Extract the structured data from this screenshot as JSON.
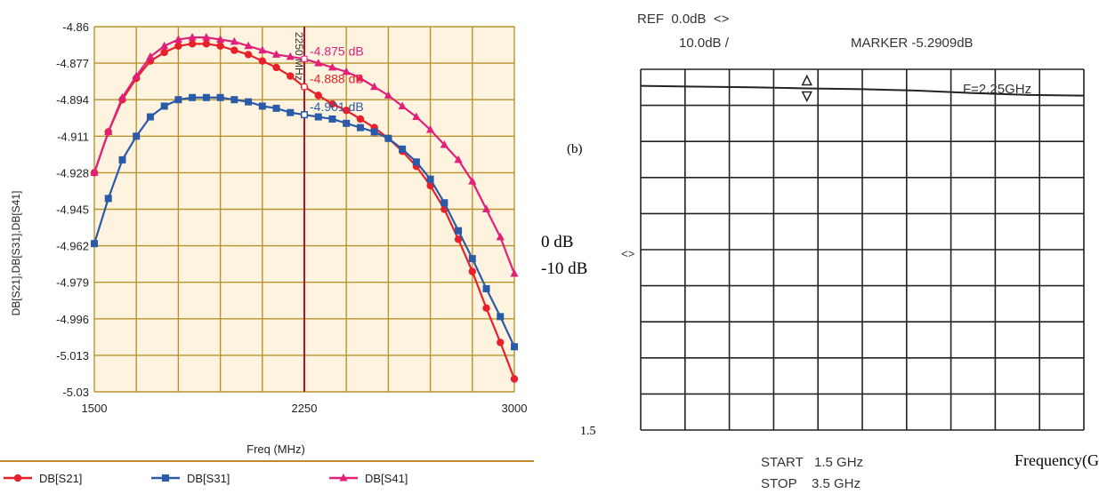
{
  "colors": {
    "chart_bg": "#fdf3df",
    "grid": "#b8932f",
    "marker_line": "#b4102a",
    "s21": "#e8202a",
    "s31": "#2a5aa8",
    "s41": "#e0207a",
    "axis_text": "#222222",
    "screen_grid": "#222222"
  },
  "notes": {
    "panel_label": "(b)",
    "level_0": "0 dB",
    "level_10": "-10 dB",
    "x_start": "1.5",
    "freq_label": "Frequency(GH"
  },
  "chart_data": [
    {
      "type": "line",
      "title": "",
      "xlabel": "Freq (MHz)",
      "ylabel": "DB[S21],DB[S31],DB[S41]",
      "xlim": [
        1500,
        3000
      ],
      "ylim": [
        -5.03,
        -4.86
      ],
      "grid": true,
      "legend_position": "bottom",
      "x_ticks": [
        "1500",
        "2250",
        "3000"
      ],
      "y_ticks": [
        "-4.86",
        "-4.877",
        "-4.894",
        "-4.911",
        "-4.928",
        "-4.945",
        "-4.962",
        "-4.979",
        "-4.996",
        "-5.013",
        "-5.03"
      ],
      "y_tick_values": [
        -4.86,
        -4.877,
        -4.894,
        -4.911,
        -4.928,
        -4.945,
        -4.962,
        -4.979,
        -4.996,
        -5.013,
        -5.03
      ],
      "marker_x": 2250,
      "marker_label": "2250 MHz",
      "annotations": [
        {
          "text": "-4.875 dB",
          "x": 2250,
          "y": -4.875,
          "series": "DB[S41]"
        },
        {
          "text": "-4.888 dB",
          "x": 2250,
          "y": -4.888,
          "series": "DB[S21]"
        },
        {
          "text": "-4.901 dB",
          "x": 2250,
          "y": -4.901,
          "series": "DB[S31]"
        }
      ],
      "series": [
        {
          "name": "DB[S21]",
          "marker": "circle",
          "x": [
            1500,
            1550,
            1600,
            1650,
            1700,
            1750,
            1800,
            1850,
            1900,
            1950,
            2000,
            2050,
            2100,
            2150,
            2200,
            2250,
            2300,
            2350,
            2400,
            2450,
            2500,
            2550,
            2600,
            2650,
            2700,
            2750,
            2800,
            2850,
            2900,
            2950,
            3000
          ],
          "y": [
            -4.928,
            -4.909,
            -4.894,
            -4.884,
            -4.876,
            -4.872,
            -4.869,
            -4.868,
            -4.868,
            -4.869,
            -4.871,
            -4.873,
            -4.876,
            -4.879,
            -4.883,
            -4.888,
            -4.892,
            -4.896,
            -4.899,
            -4.903,
            -4.907,
            -4.912,
            -4.918,
            -4.925,
            -4.934,
            -4.945,
            -4.959,
            -4.974,
            -4.991,
            -5.007,
            -5.024
          ]
        },
        {
          "name": "DB[S31]",
          "marker": "square",
          "x": [
            1500,
            1550,
            1600,
            1650,
            1700,
            1750,
            1800,
            1850,
            1900,
            1950,
            2000,
            2050,
            2100,
            2150,
            2200,
            2250,
            2300,
            2350,
            2400,
            2450,
            2500,
            2550,
            2600,
            2650,
            2700,
            2750,
            2800,
            2850,
            2900,
            2950,
            3000
          ],
          "y": [
            -4.961,
            -4.94,
            -4.922,
            -4.911,
            -4.902,
            -4.897,
            -4.894,
            -4.893,
            -4.893,
            -4.893,
            -4.894,
            -4.895,
            -4.897,
            -4.898,
            -4.9,
            -4.901,
            -4.902,
            -4.903,
            -4.905,
            -4.907,
            -4.909,
            -4.912,
            -4.917,
            -4.923,
            -4.931,
            -4.942,
            -4.955,
            -4.968,
            -4.982,
            -4.995,
            -5.009
          ]
        },
        {
          "name": "DB[S41]",
          "marker": "triangle",
          "x": [
            1500,
            1550,
            1600,
            1650,
            1700,
            1750,
            1800,
            1850,
            1900,
            1950,
            2000,
            2050,
            2100,
            2150,
            2200,
            2250,
            2300,
            2350,
            2400,
            2450,
            2500,
            2550,
            2600,
            2650,
            2700,
            2750,
            2800,
            2850,
            2900,
            2950,
            3000
          ],
          "y": [
            -4.928,
            -4.909,
            -4.893,
            -4.883,
            -4.874,
            -4.869,
            -4.866,
            -4.865,
            -4.865,
            -4.866,
            -4.867,
            -4.869,
            -4.871,
            -4.873,
            -4.874,
            -4.875,
            -4.877,
            -4.879,
            -4.881,
            -4.884,
            -4.888,
            -4.892,
            -4.897,
            -4.902,
            -4.908,
            -4.915,
            -4.922,
            -4.932,
            -4.945,
            -4.958,
            -4.975
          ]
        }
      ]
    },
    {
      "type": "line",
      "title": "",
      "xlabel": "",
      "ylabel": "",
      "grid": true,
      "ref": "REF  0.0dB  <>",
      "scale": "10.0dB /",
      "marker_text": "MARKER -5.2909dB",
      "freq_readout": "F=2.25GHz",
      "ref_indicator": "<>",
      "start": "START   1.5 GHz",
      "stop": "STOP    3.5 GHz",
      "x_range_ghz": [
        1.5,
        3.5
      ],
      "y_range_db": [
        -100,
        0
      ],
      "marker_freq_ghz": 2.25,
      "marker_level_db": -5.2909,
      "series": [
        {
          "x": [
            1.5,
            1.75,
            2.0,
            2.25,
            2.5,
            2.75,
            3.0,
            3.25,
            3.5
          ],
          "y": [
            -4.6,
            -4.8,
            -5.0,
            -5.29,
            -5.5,
            -5.9,
            -6.6,
            -7.1,
            -7.3
          ]
        }
      ]
    }
  ]
}
